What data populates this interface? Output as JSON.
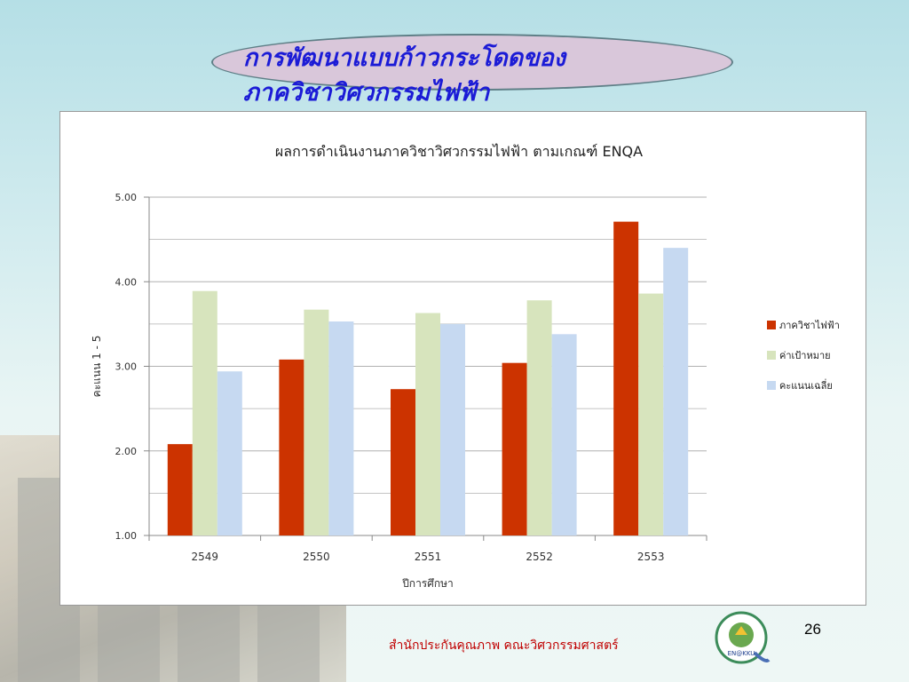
{
  "slide": {
    "title_line1": "การพัฒนาแบบก้าวกระโดดของ",
    "title_line2": "ภาควิชาวิศวกรรมไฟฟ้า",
    "footer": "สำนักประกันคุณภาพ คณะวิศวกรรมศาสตร์",
    "page_number": "26",
    "logo_text": "EN@KKU"
  },
  "colors": {
    "series1": "#cc3300",
    "series2": "#d7e4bd",
    "series3": "#c6d9f1",
    "grid": "#b0b0b0",
    "title_text": "#1b1bd6",
    "oval_fill": "#d9c7da",
    "footer_text": "#c00000"
  },
  "chart_data": {
    "type": "bar",
    "title": "ผลการดำเนินงานภาควิชาวิศวกรรมไฟฟ้า ตามเกณฑ์ ENQA",
    "xlabel": "ปีการศึกษา",
    "ylabel": "คะแนน 1 - 5",
    "categories": [
      "2549",
      "2550",
      "2551",
      "2552",
      "2553"
    ],
    "series": [
      {
        "name": "ภาควิชาไฟฟ้า",
        "values": [
          2.08,
          3.08,
          2.73,
          3.04,
          4.71
        ]
      },
      {
        "name": "ค่าเป้าหมาย",
        "values": [
          3.89,
          3.67,
          3.63,
          3.78,
          3.86
        ]
      },
      {
        "name": "คะแนนเฉลี่ย",
        "values": [
          2.94,
          3.53,
          3.5,
          3.38,
          4.4
        ]
      }
    ],
    "ylim": [
      1.0,
      5.0
    ],
    "yticks": [
      "1.00",
      "2.00",
      "3.00",
      "4.00",
      "5.00"
    ],
    "grid": true,
    "legend_position": "right"
  }
}
